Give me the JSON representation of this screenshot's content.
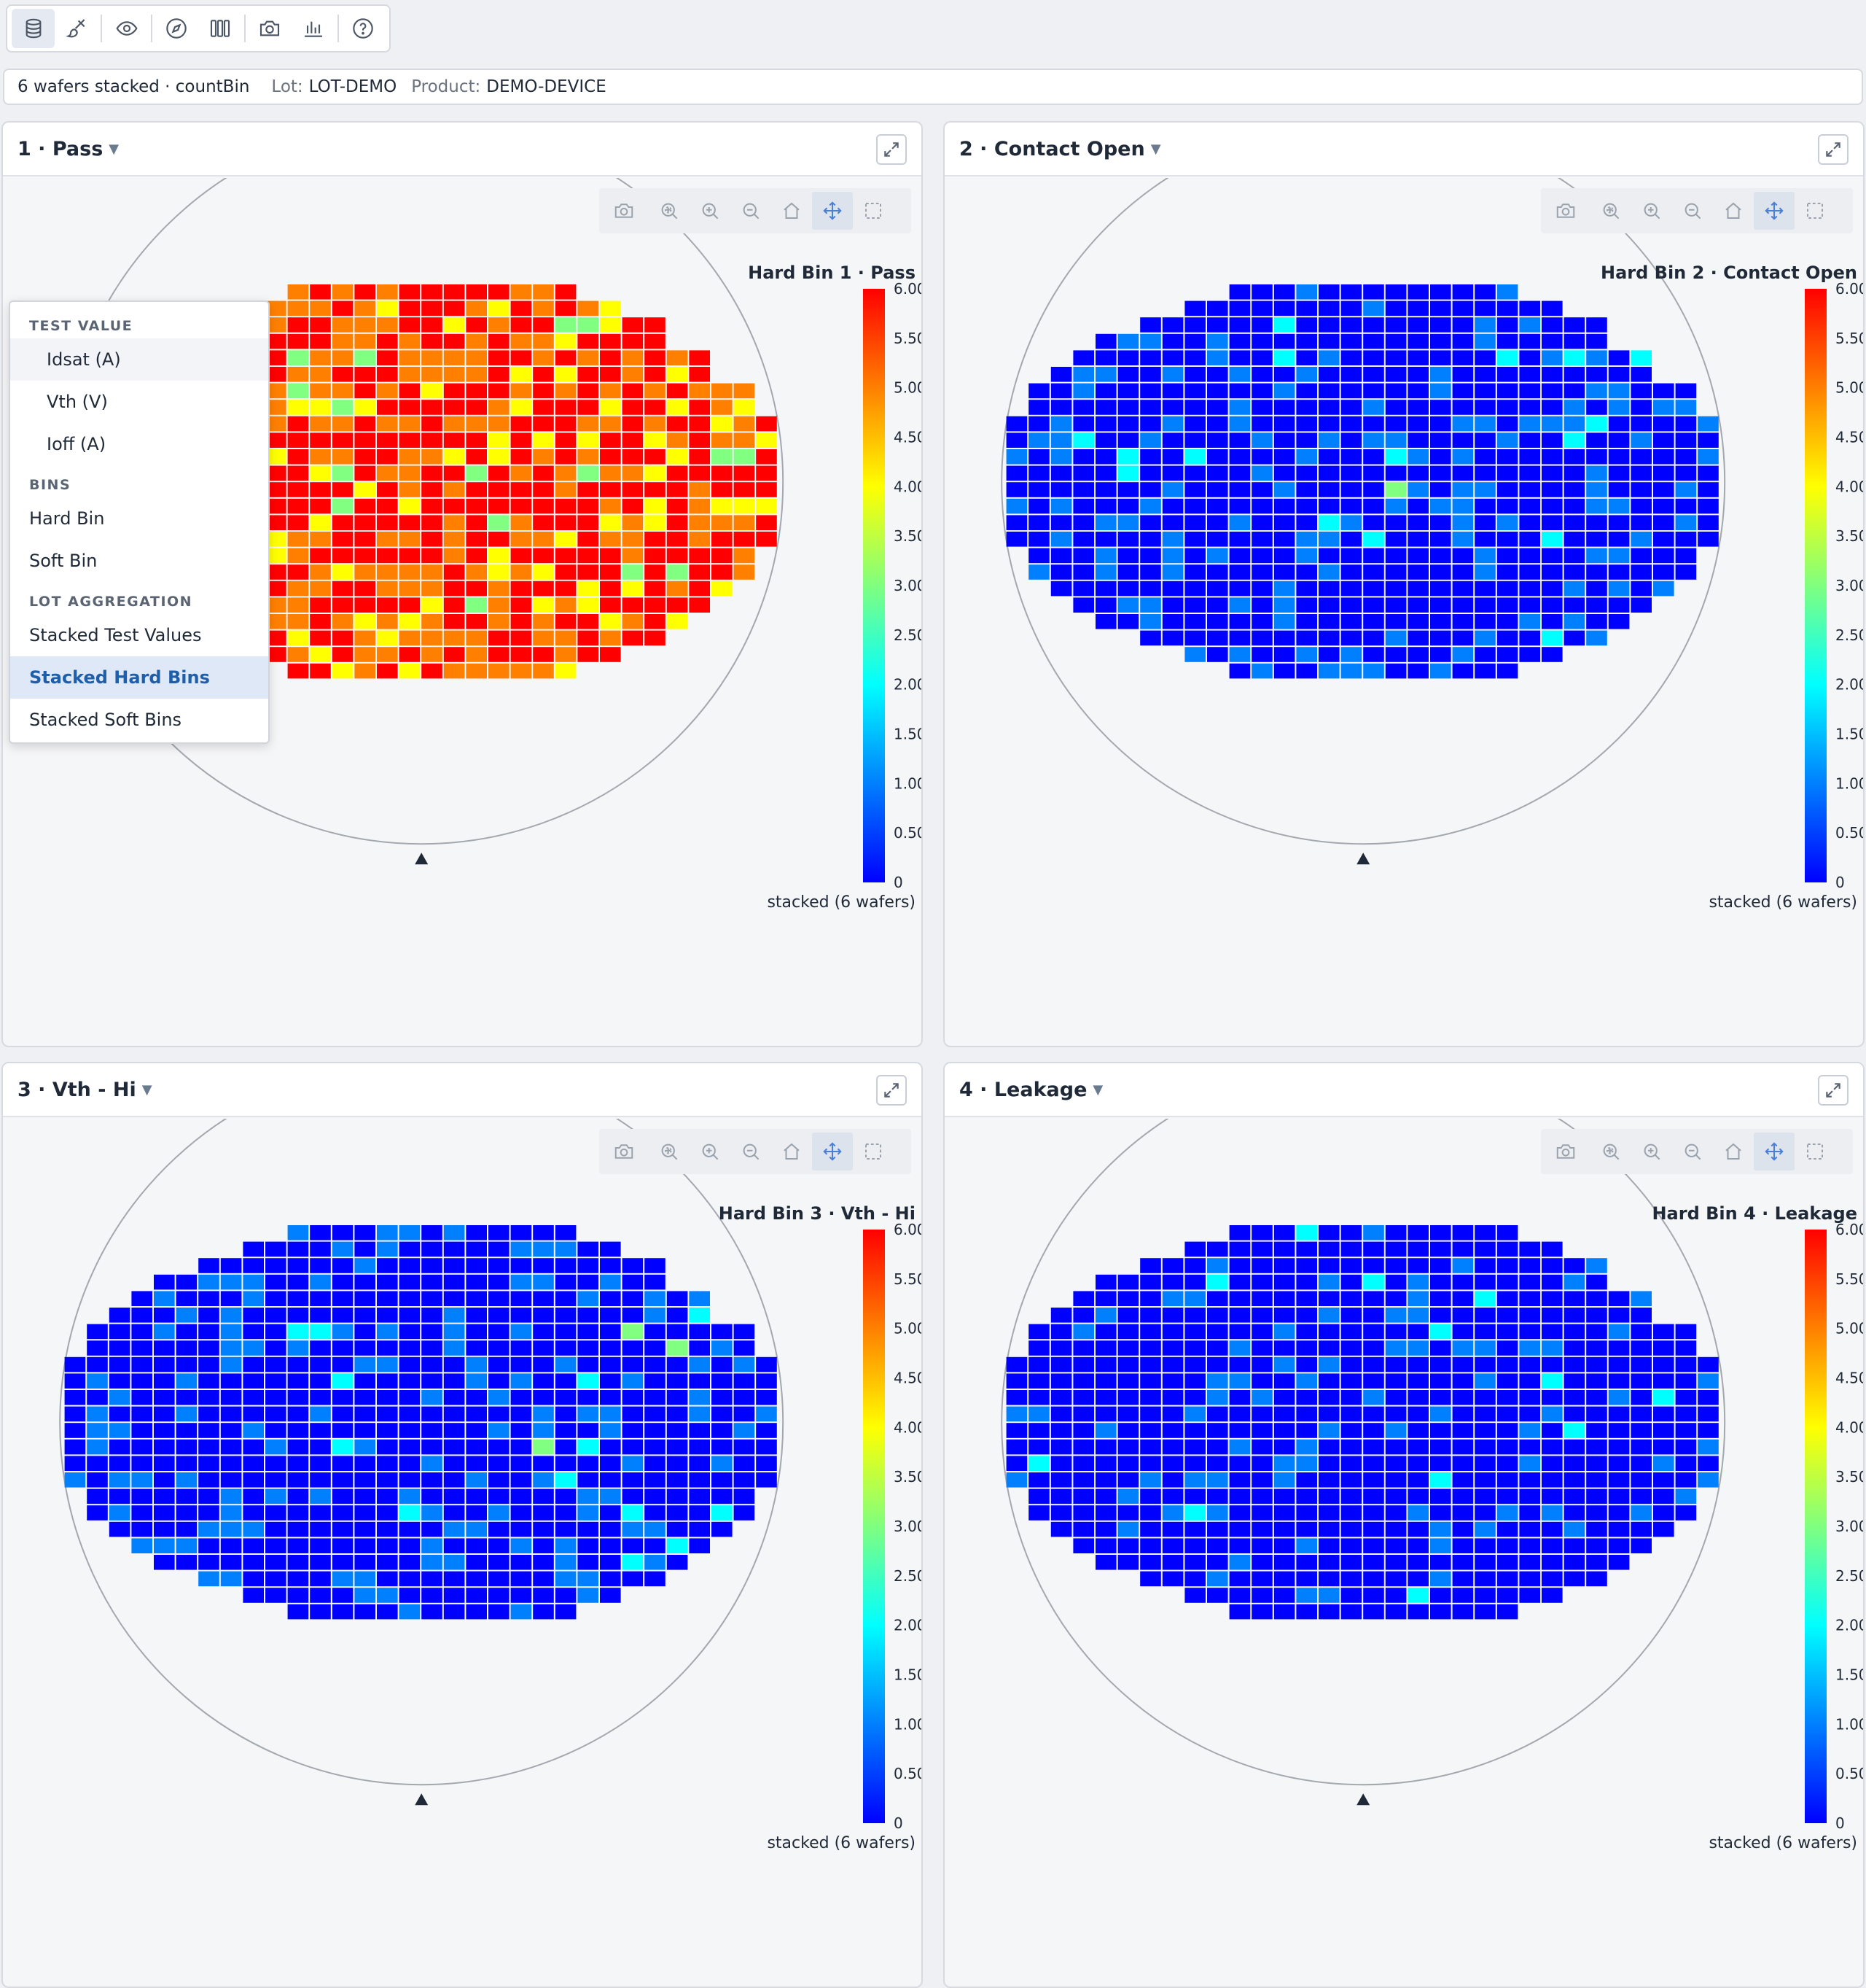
{
  "toolbar": {
    "buttons": [
      {
        "icon": "database-icon",
        "active": true
      },
      {
        "icon": "brush-icon"
      },
      {
        "icon": "eye-icon"
      },
      {
        "icon": "compass-icon"
      },
      {
        "icon": "columns-icon"
      },
      {
        "icon": "camera-icon"
      },
      {
        "icon": "bar-chart-icon"
      },
      {
        "icon": "help-icon"
      }
    ]
  },
  "info": {
    "summary": "6 wafers stacked · countBin",
    "lot_label": "Lot:",
    "lot_value": "LOT-DEMO",
    "product_label": "Product:",
    "product_value": "DEMO-DEVICE"
  },
  "dropdown": {
    "sections": [
      {
        "heading": "TEST VALUE",
        "items": [
          "Idsat (A)",
          "Vth (V)",
          "Ioff (A)"
        ],
        "indent": true
      },
      {
        "heading": "BINS",
        "items": [
          "Hard Bin",
          "Soft Bin"
        ]
      },
      {
        "heading": "LOT AGGREGATION",
        "items": [
          "Stacked Test Values",
          "Stacked Hard Bins",
          "Stacked Soft Bins"
        ]
      }
    ],
    "hovered": "Idsat (A)",
    "selected": "Stacked Hard Bins"
  },
  "colorscale": {
    "name": "jet",
    "stops": [
      "#0000ff",
      "#00ffff",
      "#ffff00",
      "#ff0000"
    ],
    "tick_labels": [
      "0",
      "0.500",
      "1.000",
      "1.500",
      "2.000",
      "2.500",
      "3.000",
      "3.500",
      "4.000",
      "4.500",
      "5.000",
      "5.500",
      "6.000"
    ],
    "range": [
      0,
      6
    ]
  },
  "panels": [
    {
      "title": "1 · Pass",
      "colorbar_title": "Hard Bin 1 · Pass",
      "footer": "stacked (6 wafers)",
      "map": "pass"
    },
    {
      "title": "2 · Contact Open",
      "colorbar_title": "Hard Bin 2 · Contact Open",
      "footer": "stacked (6 wafers)",
      "map": "contact"
    },
    {
      "title": "3 · Vth - Hi",
      "colorbar_title": "Hard Bin 3 · Vth - Hi",
      "footer": "stacked (6 wafers)",
      "map": "vth"
    },
    {
      "title": "4 · Leakage",
      "colorbar_title": "Hard Bin 4 · Leakage",
      "footer": "stacked (6 wafers)",
      "map": "leak"
    }
  ],
  "wafer": {
    "rows": 24,
    "cols": 34,
    "row_spans": [
      [
        11,
        23
      ],
      [
        9,
        25
      ],
      [
        7,
        27
      ],
      [
        5,
        27
      ],
      [
        4,
        29
      ],
      [
        3,
        29
      ],
      [
        2,
        31
      ],
      [
        2,
        31
      ],
      [
        1,
        32
      ],
      [
        1,
        32
      ],
      [
        1,
        32
      ],
      [
        1,
        32
      ],
      [
        1,
        32
      ],
      [
        1,
        32
      ],
      [
        1,
        32
      ],
      [
        1,
        32
      ],
      [
        2,
        31
      ],
      [
        2,
        31
      ],
      [
        3,
        30
      ],
      [
        4,
        29
      ],
      [
        5,
        28
      ],
      [
        7,
        27
      ],
      [
        9,
        25
      ],
      [
        11,
        23
      ]
    ]
  },
  "chart_data": [
    {
      "type": "heatmap",
      "title": "Hard Bin 1 · Pass",
      "colorbar_range": [
        0,
        6
      ],
      "value_levels": [
        3,
        4,
        5,
        6
      ]
    },
    {
      "type": "heatmap",
      "title": "Hard Bin 2 · Contact Open",
      "colorbar_range": [
        0,
        6
      ],
      "value_levels": [
        0,
        1,
        2,
        3
      ]
    },
    {
      "type": "heatmap",
      "title": "Hard Bin 3 · Vth - Hi",
      "colorbar_range": [
        0,
        6
      ],
      "value_levels": [
        0,
        1,
        2,
        3
      ]
    },
    {
      "type": "heatmap",
      "title": "Hard Bin 4 · Leakage",
      "colorbar_range": [
        0,
        6
      ],
      "value_levels": [
        0,
        1,
        2
      ]
    }
  ]
}
